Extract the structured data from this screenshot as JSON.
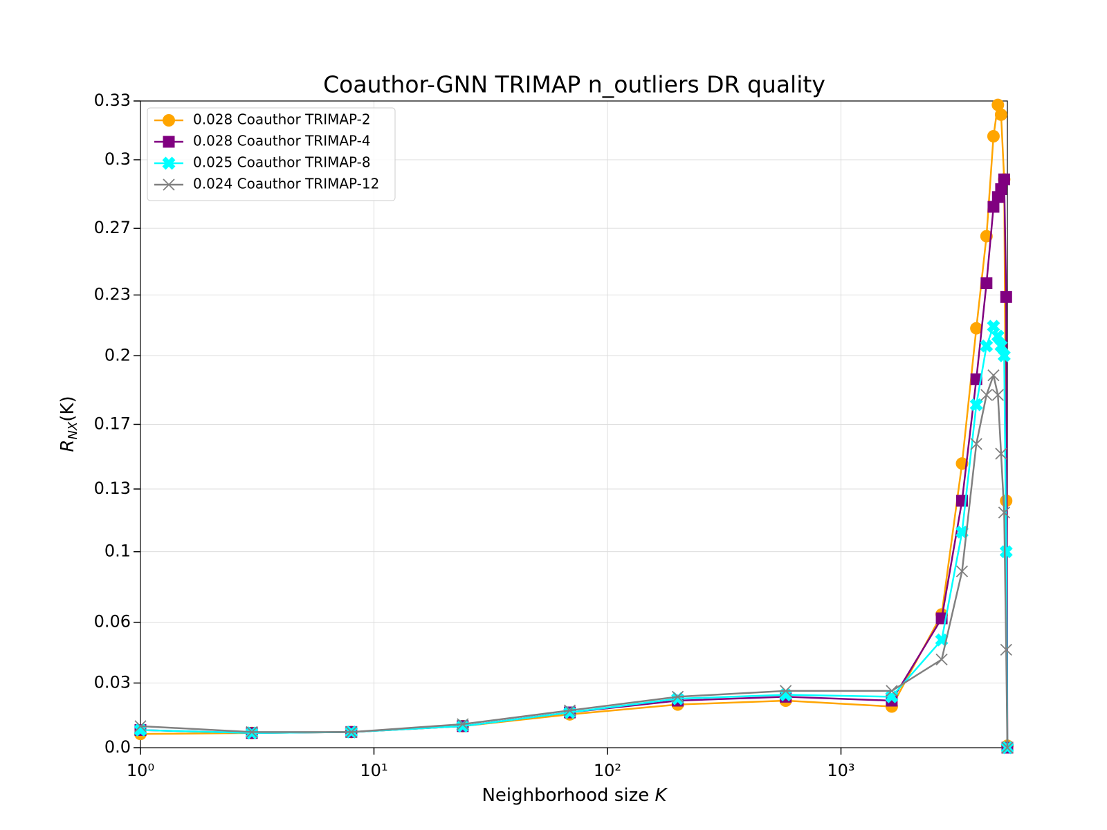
{
  "chart_data": {
    "type": "line",
    "title": "Coauthor-GNN TRIMAP n_outliers DR quality",
    "xlabel": "Neighborhood size",
    "xlabel_var": "K",
    "ylabel": {
      "text": "R",
      "subscript": "NX",
      "suffix": "(K)"
    },
    "xscale": "log",
    "grid": true,
    "legend": "upper left",
    "xlim": [
      1,
      5160
    ],
    "xticks": [
      {
        "value": 1,
        "label": "10⁰"
      },
      {
        "value": 10,
        "label": "10¹"
      },
      {
        "value": 100,
        "label": "10²"
      },
      {
        "value": 1000,
        "label": "10³"
      }
    ],
    "ylim": [
      0,
      0.33
    ],
    "yticks": [
      {
        "value": 0,
        "label": "0.0"
      },
      {
        "value": 0.033,
        "label": "0.03"
      },
      {
        "value": 0.064,
        "label": "0.06"
      },
      0.1,
      {
        "value": 0.132,
        "label": "0.13"
      },
      {
        "value": 0.165,
        "label": "0.17"
      },
      0.2,
      {
        "value": 0.231,
        "label": "0.23"
      },
      {
        "value": 0.265,
        "label": "0.27"
      },
      0.3,
      0.33
    ],
    "series": [
      {
        "name": "0.028 Coauthor TRIMAP-2",
        "color": "#ffa500",
        "marker": "circle",
        "x": [
          1,
          3,
          8,
          24,
          69,
          200,
          580,
          1650,
          2700,
          3300,
          3800,
          4200,
          4500,
          4700,
          4850,
          5000,
          5100,
          5160
        ],
        "values": [
          0.007,
          0.0075,
          0.008,
          0.011,
          0.017,
          0.022,
          0.024,
          0.021,
          0.068,
          0.145,
          0.214,
          0.261,
          0.312,
          0.328,
          0.323,
          0.29,
          0.126,
          0.001
        ]
      },
      {
        "name": "0.028 Coauthor TRIMAP-4",
        "color": "#800080",
        "marker": "square",
        "x": [
          1,
          3,
          8,
          24,
          69,
          200,
          580,
          1650,
          2700,
          3300,
          3800,
          4200,
          4500,
          4700,
          4850,
          5000,
          5100,
          5160
        ],
        "values": [
          0.009,
          0.0075,
          0.008,
          0.011,
          0.018,
          0.024,
          0.026,
          0.024,
          0.066,
          0.126,
          0.188,
          0.237,
          0.276,
          0.281,
          0.285,
          0.29,
          0.23,
          0.0
        ]
      },
      {
        "name": "0.025 Coauthor TRIMAP-8",
        "color": "#00ffff",
        "marker": "xfilled",
        "x": [
          1,
          3,
          8,
          24,
          69,
          200,
          580,
          1650,
          2700,
          3300,
          3800,
          4200,
          4500,
          4700,
          4850,
          5000,
          5100,
          5160
        ],
        "values": [
          0.009,
          0.0075,
          0.008,
          0.011,
          0.018,
          0.025,
          0.027,
          0.026,
          0.055,
          0.11,
          0.175,
          0.205,
          0.215,
          0.21,
          0.205,
          0.2,
          0.1,
          0.0
        ]
      },
      {
        "name": "0.024 Coauthor TRIMAP-12",
        "color": "#808080",
        "marker": "x",
        "x": [
          1,
          3,
          8,
          24,
          69,
          200,
          580,
          1650,
          2700,
          3300,
          3800,
          4200,
          4500,
          4700,
          4850,
          5000,
          5100,
          5160
        ],
        "values": [
          0.011,
          0.008,
          0.008,
          0.012,
          0.019,
          0.026,
          0.029,
          0.029,
          0.045,
          0.09,
          0.155,
          0.18,
          0.19,
          0.18,
          0.15,
          0.12,
          0.05,
          0.0
        ]
      }
    ]
  }
}
